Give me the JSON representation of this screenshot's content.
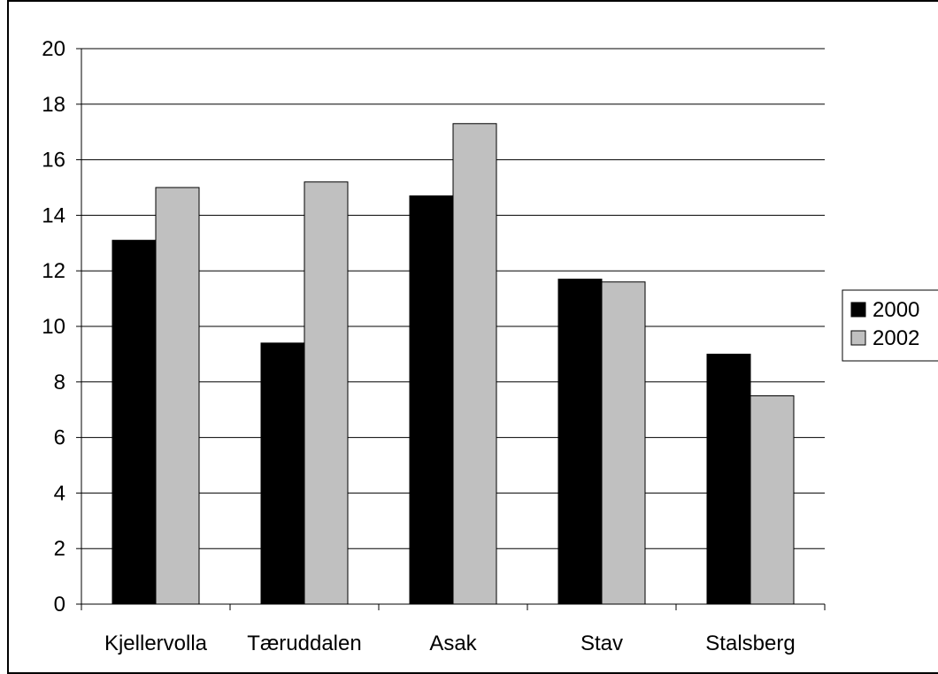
{
  "chart_data": {
    "type": "bar",
    "categories": [
      "Kjellervolla",
      "Tæruddalen",
      "Asak",
      "Stav",
      "Stalsberg"
    ],
    "series": [
      {
        "name": "2000",
        "values": [
          13.1,
          9.4,
          14.7,
          11.7,
          9.0
        ],
        "color": "#000000"
      },
      {
        "name": "2002",
        "values": [
          15.0,
          15.2,
          17.3,
          11.6,
          7.5
        ],
        "color": "#c0c0c0"
      }
    ],
    "ylim": [
      0,
      20
    ],
    "yticks": [
      "0",
      "2",
      "4",
      "6",
      "8",
      "10",
      "12",
      "14",
      "16",
      "18",
      "20"
    ],
    "grid": true,
    "legend_position": "right",
    "title": "",
    "xlabel": "",
    "ylabel": ""
  }
}
